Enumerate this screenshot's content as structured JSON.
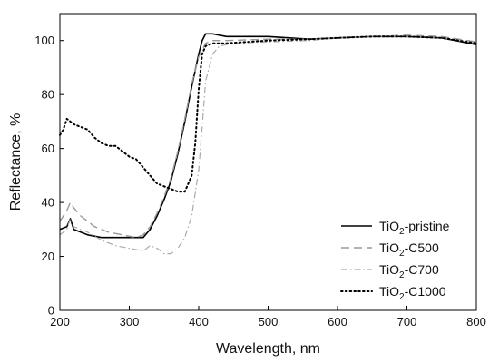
{
  "chart_data": {
    "type": "line",
    "xlabel": "Wavelength, nm",
    "ylabel": "Reflectance, %",
    "xlim": [
      200,
      800
    ],
    "ylim": [
      0,
      110
    ],
    "x_ticks": [
      200,
      300,
      400,
      500,
      600,
      700,
      800
    ],
    "y_ticks": [
      0,
      20,
      40,
      60,
      80,
      100
    ],
    "grid": false,
    "legend_position": "lower-right",
    "series": [
      {
        "name": "TiO2-pristine",
        "legend_parts": [
          "TiO",
          "2",
          "-pristine"
        ],
        "style": "solid",
        "color": "#000000",
        "x": [
          200,
          210,
          215,
          220,
          240,
          260,
          280,
          300,
          320,
          330,
          340,
          350,
          360,
          370,
          380,
          390,
          400,
          405,
          410,
          420,
          440,
          500,
          560,
          600,
          650,
          700,
          750,
          800
        ],
        "y": [
          30,
          31,
          34,
          30,
          28,
          27,
          27,
          27,
          27,
          30,
          35,
          41,
          48,
          58,
          70,
          83,
          95,
          100,
          102.5,
          102.5,
          101.5,
          101.5,
          100.5,
          101,
          101.5,
          101.5,
          101,
          98.5
        ]
      },
      {
        "name": "TiO2-C500",
        "legend_parts": [
          "TiO",
          "2",
          "-C500"
        ],
        "style": "dashed",
        "color": "#999999",
        "x": [
          200,
          210,
          215,
          220,
          230,
          250,
          270,
          290,
          310,
          320,
          330,
          340,
          350,
          360,
          370,
          380,
          390,
          400,
          410,
          420,
          440,
          500,
          560,
          600,
          650,
          700,
          750,
          800
        ],
        "y": [
          33,
          37,
          40,
          38,
          35,
          31,
          29,
          28,
          27,
          28,
          31,
          36,
          42,
          49,
          59,
          71,
          84,
          94,
          99,
          100,
          100,
          100.5,
          100.5,
          101,
          101.5,
          102,
          101.5,
          99.5
        ]
      },
      {
        "name": "TiO2-C700",
        "legend_parts": [
          "TiO",
          "2",
          "-C700"
        ],
        "style": "dashdot",
        "color": "#aaaaaa",
        "x": [
          200,
          210,
          215,
          220,
          240,
          260,
          280,
          300,
          320,
          330,
          340,
          350,
          360,
          370,
          380,
          390,
          400,
          405,
          410,
          420,
          430,
          450,
          500,
          560,
          600,
          650,
          700,
          750,
          800
        ],
        "y": [
          28,
          30,
          34,
          31,
          29,
          26,
          24,
          23,
          22,
          24,
          23,
          21,
          21,
          23,
          27,
          35,
          52,
          68,
          85,
          95,
          98,
          99,
          99.5,
          100,
          101,
          101.5,
          101.5,
          101,
          99
        ]
      },
      {
        "name": "TiO2-C1000",
        "legend_parts": [
          "TiO",
          "2",
          "-C1000"
        ],
        "style": "dotted",
        "color": "#000000",
        "x": [
          200,
          205,
          210,
          215,
          220,
          230,
          240,
          250,
          260,
          270,
          280,
          290,
          300,
          310,
          320,
          330,
          340,
          350,
          360,
          370,
          380,
          390,
          395,
          400,
          405,
          410,
          420,
          440,
          500,
          560,
          600,
          650,
          700,
          750,
          800
        ],
        "y": [
          65,
          67,
          71,
          70,
          69,
          68,
          67,
          64,
          62,
          61,
          61,
          59,
          57,
          56,
          53,
          50,
          47,
          46,
          45,
          44,
          44,
          50,
          62,
          82,
          95,
          98,
          99,
          99,
          100,
          100.5,
          101,
          101.5,
          101.5,
          101,
          99
        ]
      }
    ]
  }
}
